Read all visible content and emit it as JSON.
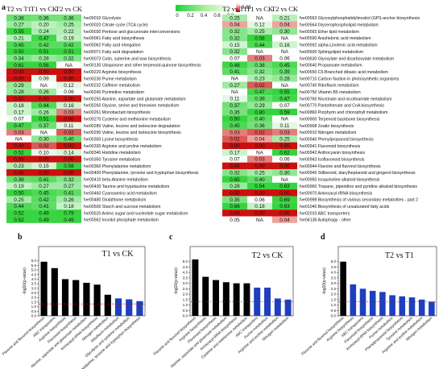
{
  "heatmap": {
    "legend_ticks": [
      "0",
      "0.2",
      "0.4",
      "0.6",
      "0.8"
    ],
    "legend_max_label": "0.05",
    "panel_letter": "a",
    "left": {
      "headers": [
        "T2 vs T1",
        "T1 vs CK",
        "T2 vs CK"
      ],
      "rows": [
        {
          "label": "fve00010 Glycolysis",
          "values": [
            "0.38",
            "0.36",
            "0.36"
          ]
        },
        {
          "label": "fve00020 Citrate cycle (TCA cycle)",
          "values": [
            "0.27",
            "0.20",
            "0.25"
          ]
        },
        {
          "label": "fve00030 Pentose and glucuronate interconversions",
          "values": [
            "0.55",
            "0.24",
            "0.22"
          ]
        },
        {
          "label": "fve00061 Fatty acid biosynthesis",
          "values": [
            "0.21",
            "0.47",
            "0.19"
          ]
        },
        {
          "label": "fve00062 Fatty acid elongation",
          "values": [
            "0.45",
            "0.42",
            "0.42"
          ]
        },
        {
          "label": "fve00071 Fatty acid degradation",
          "values": [
            "0.50",
            "0.51",
            "0.51"
          ]
        },
        {
          "label": "fve00073 Cutin, suberine and wax biosynthesis",
          "values": [
            "0.34",
            "0.28",
            "0.32"
          ]
        },
        {
          "label": "fve00130 Ubiquinone and other terpenoid-quinone biosynthesis",
          "values": [
            "0.61",
            "0.56",
            "NA"
          ]
        },
        {
          "label": "fve00220 Arginine biosynthesis",
          "values": [
            "0.00",
            "0.00",
            "0.00"
          ]
        },
        {
          "label": "fve00230 Purine metabolism",
          "values": [
            "0.00",
            "0.09",
            "0.00"
          ]
        },
        {
          "label": "fve00232 Caffeine metabolism",
          "values": [
            "0.29",
            "NA",
            "0.12"
          ]
        },
        {
          "label": "fve00240 Pyrimidine metabolism",
          "values": [
            "0.28",
            "0.26",
            "0.06"
          ]
        },
        {
          "label": "fve00250 Alanine, aspartate and glutamate metabolism",
          "values": [
            "0.00",
            "0.00",
            "0.00"
          ]
        },
        {
          "label": "fve00260 Glycine, serine and threonine metabolism",
          "values": [
            "0.18",
            "0.44",
            "0.16"
          ]
        },
        {
          "label": "fve00261 Monobactam biosynthesis",
          "values": [
            "0.17",
            "0.26",
            "0.03"
          ]
        },
        {
          "label": "fve00270 Cysteine and methionine metabolism",
          "values": [
            "0.07",
            "0.51",
            "0.00"
          ]
        },
        {
          "label": "fve00280 Valine, leucine and isoleucine degradation",
          "values": [
            "0.47",
            "0.37",
            "0.11"
          ]
        },
        {
          "label": "fve00290 Valine, leucine and isoleucine biosynthesis",
          "values": [
            "0.03",
            "NA",
            "0.02"
          ]
        },
        {
          "label": "fve00300 Lysine biosynthesis",
          "values": [
            "NA",
            "0.30",
            "0.40"
          ]
        },
        {
          "label": "fve00330 Arginine and proline metabolism",
          "values": [
            "0.00",
            "0.02",
            "0.00"
          ]
        },
        {
          "label": "fve00340 Histidine metabolism",
          "values": [
            "0.52",
            "0.10",
            "0.14"
          ]
        },
        {
          "label": "fve00350 Tyrosine metabolism",
          "values": [
            "0.00",
            "0.00",
            "0.00"
          ]
        },
        {
          "label": "fve00360 Phenylalanine metabolism",
          "values": [
            "0.23",
            "0.15",
            "0.58"
          ]
        },
        {
          "label": "fve00400 Phenylalanine, tyrosine and tryptophan biosynthesis",
          "values": [
            "0.00",
            "0.00",
            "0.00"
          ]
        },
        {
          "label": "fve00410 beta-Alanine metabolism",
          "values": [
            "0.39",
            "0.41",
            "0.32"
          ]
        },
        {
          "label": "fve00430 Taurine and hypotaurine metabolism",
          "values": [
            "0.19",
            "0.27",
            "0.27"
          ]
        },
        {
          "label": "fve00460 Cyanoamino acid metabolism",
          "values": [
            "0.50",
            "0.45",
            "0.41"
          ]
        },
        {
          "label": "fve00480 Glutathione metabolism",
          "values": [
            "0.25",
            "0.42",
            "0.26"
          ]
        },
        {
          "label": "fve00500 Starch and sucrose metabolism",
          "values": [
            "0.44",
            "0.41",
            "0.18"
          ]
        },
        {
          "label": "fve00520 Amino sugar and nucleotide sugar metabolism",
          "values": [
            "0.52",
            "0.49",
            "0.79"
          ]
        },
        {
          "label": "fve00562 Inositol phosphate metabolism",
          "values": [
            "0.52",
            "0.49",
            "0.49"
          ]
        }
      ]
    },
    "right": {
      "headers": [
        "T2 vs T1",
        "T1 vs CK",
        "T2 vs CK"
      ],
      "rows": [
        {
          "label": "fve00563 Glycosylphosphatidylinositol (GPI)-anchor biosynthesis",
          "values": [
            "0.25",
            "NA",
            "0.21"
          ]
        },
        {
          "label": "fve00564 Glycerophospholipid metabolism",
          "values": [
            "0.04",
            "0.12",
            "0.04"
          ]
        },
        {
          "label": "fve00565 Ether lipid metabolism",
          "values": [
            "0.32",
            "0.25",
            "0.30"
          ]
        },
        {
          "label": "fve00590 Arachidonic acid metabolism",
          "values": [
            "0.32",
            "0.58",
            "NA"
          ]
        },
        {
          "label": "fve00592 alpha-Linolenic acid metabolism",
          "values": [
            "0.15",
            "0.44",
            "0.16"
          ]
        },
        {
          "label": "fve00600 Sphingolipid metabolism",
          "values": [
            "0.32",
            "NA",
            "NA"
          ]
        },
        {
          "label": "fve00630 Glyoxylate and dicarboxylate metabolism",
          "values": [
            "0.07",
            "0.03",
            "0.06"
          ]
        },
        {
          "label": "fve00640 Propanoate metabolism",
          "values": [
            "0.48",
            "0.38",
            "0.45"
          ]
        },
        {
          "label": "fve00650 C5-Branched dibasic acid metabolism",
          "values": [
            "0.41",
            "0.32",
            "0.39"
          ]
        },
        {
          "label": "fve00710 Carbon fixation in photosynthetic organisms",
          "values": [
            "NA",
            "0.23",
            "0.28"
          ]
        },
        {
          "label": "fve00740 Riboflavin metabolism",
          "values": [
            "0.27",
            "0.02",
            "NA"
          ]
        },
        {
          "label": "fve00750 Vitamin B6 metabolism",
          "values": [
            "NA",
            "0.47",
            "0.55"
          ]
        },
        {
          "label": "fve00760 Nicotinate and nicotinamide metabolism",
          "values": [
            "0.11",
            "0.39",
            "0.47"
          ]
        },
        {
          "label": "fve00770 Pantothenate and CoA biosynthesis",
          "values": [
            "0.37",
            "0.29",
            "0.07"
          ]
        },
        {
          "label": "fve00860 Porphyrin and chlorophyll metabolism",
          "values": [
            "0.35",
            "0.80",
            "0.59"
          ]
        },
        {
          "label": "fve00900 Terpenoid backbone biosynthesis",
          "values": [
            "0.50",
            "0.40",
            "NA"
          ]
        },
        {
          "label": "fve00908 Zeatin biosynthesis",
          "values": [
            "0.45",
            "0.36",
            "0.11"
          ]
        },
        {
          "label": "fve00910 Nitrogen metabolism",
          "values": [
            "0.03",
            "0.02",
            "0.03"
          ]
        },
        {
          "label": "fve00940 Phenylpropanoid biosynthesis",
          "values": [
            "0.02",
            "0.04",
            "0.25"
          ]
        },
        {
          "label": "fve00941 Flavonoid biosynthesis",
          "values": [
            "0.00",
            "0.00",
            "0.00"
          ]
        },
        {
          "label": "fve00942 Anthocyanin biosynthesis",
          "values": [
            "0.17",
            "NA",
            "0.62"
          ]
        },
        {
          "label": "fve00943 Isoflavonoid biosynthesis",
          "values": [
            "0.07",
            "0.03",
            "0.06"
          ]
        },
        {
          "label": "fve00944 Flavone and flavonol biosynthesis",
          "values": [
            "0.00",
            "0.00",
            "0.00"
          ]
        },
        {
          "label": "fve00945 Stilbenoid, diarylheptanoid and gingerol biosynthesis",
          "values": [
            "0.32",
            "0.25",
            "0.30"
          ]
        },
        {
          "label": "fve00950 Isoquinoline alkaloid biosynthesis",
          "values": [
            "0.65",
            "0.40",
            "NA"
          ]
        },
        {
          "label": "fve00960 Tropane, piperidine and pyridine alkaloid biosynthesis",
          "values": [
            "0.28",
            "0.54",
            "0.63"
          ]
        },
        {
          "label": "fve00970 Aminoacyl-tRNA biosynthesis",
          "values": [
            "0.00",
            "0.00",
            "0.00"
          ]
        },
        {
          "label": "fve00998 Biosynthesis of various secondary metabolites - part 2",
          "values": [
            "0.35",
            "0.06",
            "0.69"
          ]
        },
        {
          "label": "fve01040 Biosynthesis of unsaturated fatty acids",
          "values": [
            "0.66",
            "0.18",
            "0.63"
          ]
        },
        {
          "label": "fve02010 ABC transporters",
          "values": [
            "0.00",
            "0.00",
            "0.00"
          ]
        },
        {
          "label": "fve04136 Autophagy - other",
          "values": [
            "0.05",
            "NA",
            "0.04"
          ]
        }
      ]
    }
  },
  "chart_data": [
    {
      "type": "bar",
      "panel_letter": "b",
      "title": "T1 vs CK",
      "ylabel": "-log10(p-value)",
      "ylim": [
        0,
        6.5
      ],
      "yticks": [
        0,
        0.5,
        1.0,
        1.5,
        2.0,
        2.5,
        3.0,
        3.5,
        4.0,
        4.5,
        5.0,
        5.5,
        6.0
      ],
      "threshold": 1.3,
      "categories": [
        "Flavone and flavonol biosynthesis",
        "ABC transporters",
        "Arginine biosynthesis",
        "Flavonoid biosynthesis",
        "Alanine, aspartate and glutamate metabolism",
        "Aminoacyl-tRNA biosynthesis",
        "Nitrogen metabolism",
        "Riboflavin metabolism",
        "Glycolysis and cysteine metabolism",
        "Phenylalanine, tyrosine and tryptophan biosynthesis"
      ],
      "values": [
        5.9,
        5.2,
        4.0,
        3.9,
        3.6,
        3.4,
        2.3,
        1.9,
        1.8,
        1.6
      ],
      "colors": [
        "#000000",
        "#000000",
        "#000000",
        "#000000",
        "#000000",
        "#000000",
        "#000000",
        "#1f3fbf",
        "#1f3fbf",
        "#1f3fbf"
      ]
    },
    {
      "type": "bar",
      "panel_letter": "c",
      "title": "T2 vs CK",
      "ylabel": "-log10(p-value)",
      "ylim": [
        0,
        5.5
      ],
      "yticks": [
        0,
        0.5,
        1.0,
        1.5,
        2.0,
        2.5,
        3.0,
        3.5,
        4.0,
        4.5,
        5.0
      ],
      "threshold": 1.3,
      "categories": [
        "Flavone and flavonol biosynthesis",
        "Arginine biosynthesis",
        "Flavonoid biosynthesis",
        "Alanine, aspartate and glutamate metabolism",
        "Aminoacyl-tRNA biosynthesis",
        "Cysteine and methionine metabolism",
        "ABC transporters",
        "Purine metabolism",
        "Arginine and proline metabolism",
        "Nitrogen metabolism"
      ],
      "values": [
        5.2,
        3.6,
        3.3,
        3.1,
        3.0,
        3.0,
        2.6,
        2.6,
        1.6,
        1.5
      ],
      "colors": [
        "#000000",
        "#000000",
        "#000000",
        "#000000",
        "#000000",
        "#000000",
        "#1f3fbf",
        "#1f3fbf",
        "#1f3fbf",
        "#1f3fbf"
      ]
    },
    {
      "type": "bar",
      "panel_letter": "d",
      "title": "T2 vs T1",
      "ylabel": "-log10(p-value)",
      "ylim": [
        0,
        5.5
      ],
      "yticks": [
        0,
        0.5,
        1.0,
        1.5,
        2.0,
        2.5,
        3.0,
        3.5,
        4.0,
        4.5,
        5.0
      ],
      "threshold": 1.3,
      "categories": [
        "Flavone and flavonol biosynthesis",
        "Arginine biosynthesis",
        "ABC transporters",
        "Flavonoid biosynthesis",
        "Aminoacyl-tRNA biosynthesis",
        "Purine metabolism",
        "Phenylpropanoid biosynthesis",
        "Tyrosine metabolism",
        "Arginine and proline metabolism",
        "Nitrogen metabolism"
      ],
      "values": [
        5.0,
        2.9,
        2.5,
        2.3,
        2.2,
        1.9,
        1.8,
        1.7,
        1.5,
        1.3
      ],
      "colors": [
        "#000000",
        "#1f3fbf",
        "#1f3fbf",
        "#1f3fbf",
        "#1f3fbf",
        "#1f3fbf",
        "#1f3fbf",
        "#1f3fbf",
        "#1f3fbf",
        "#1f3fbf"
      ]
    }
  ]
}
